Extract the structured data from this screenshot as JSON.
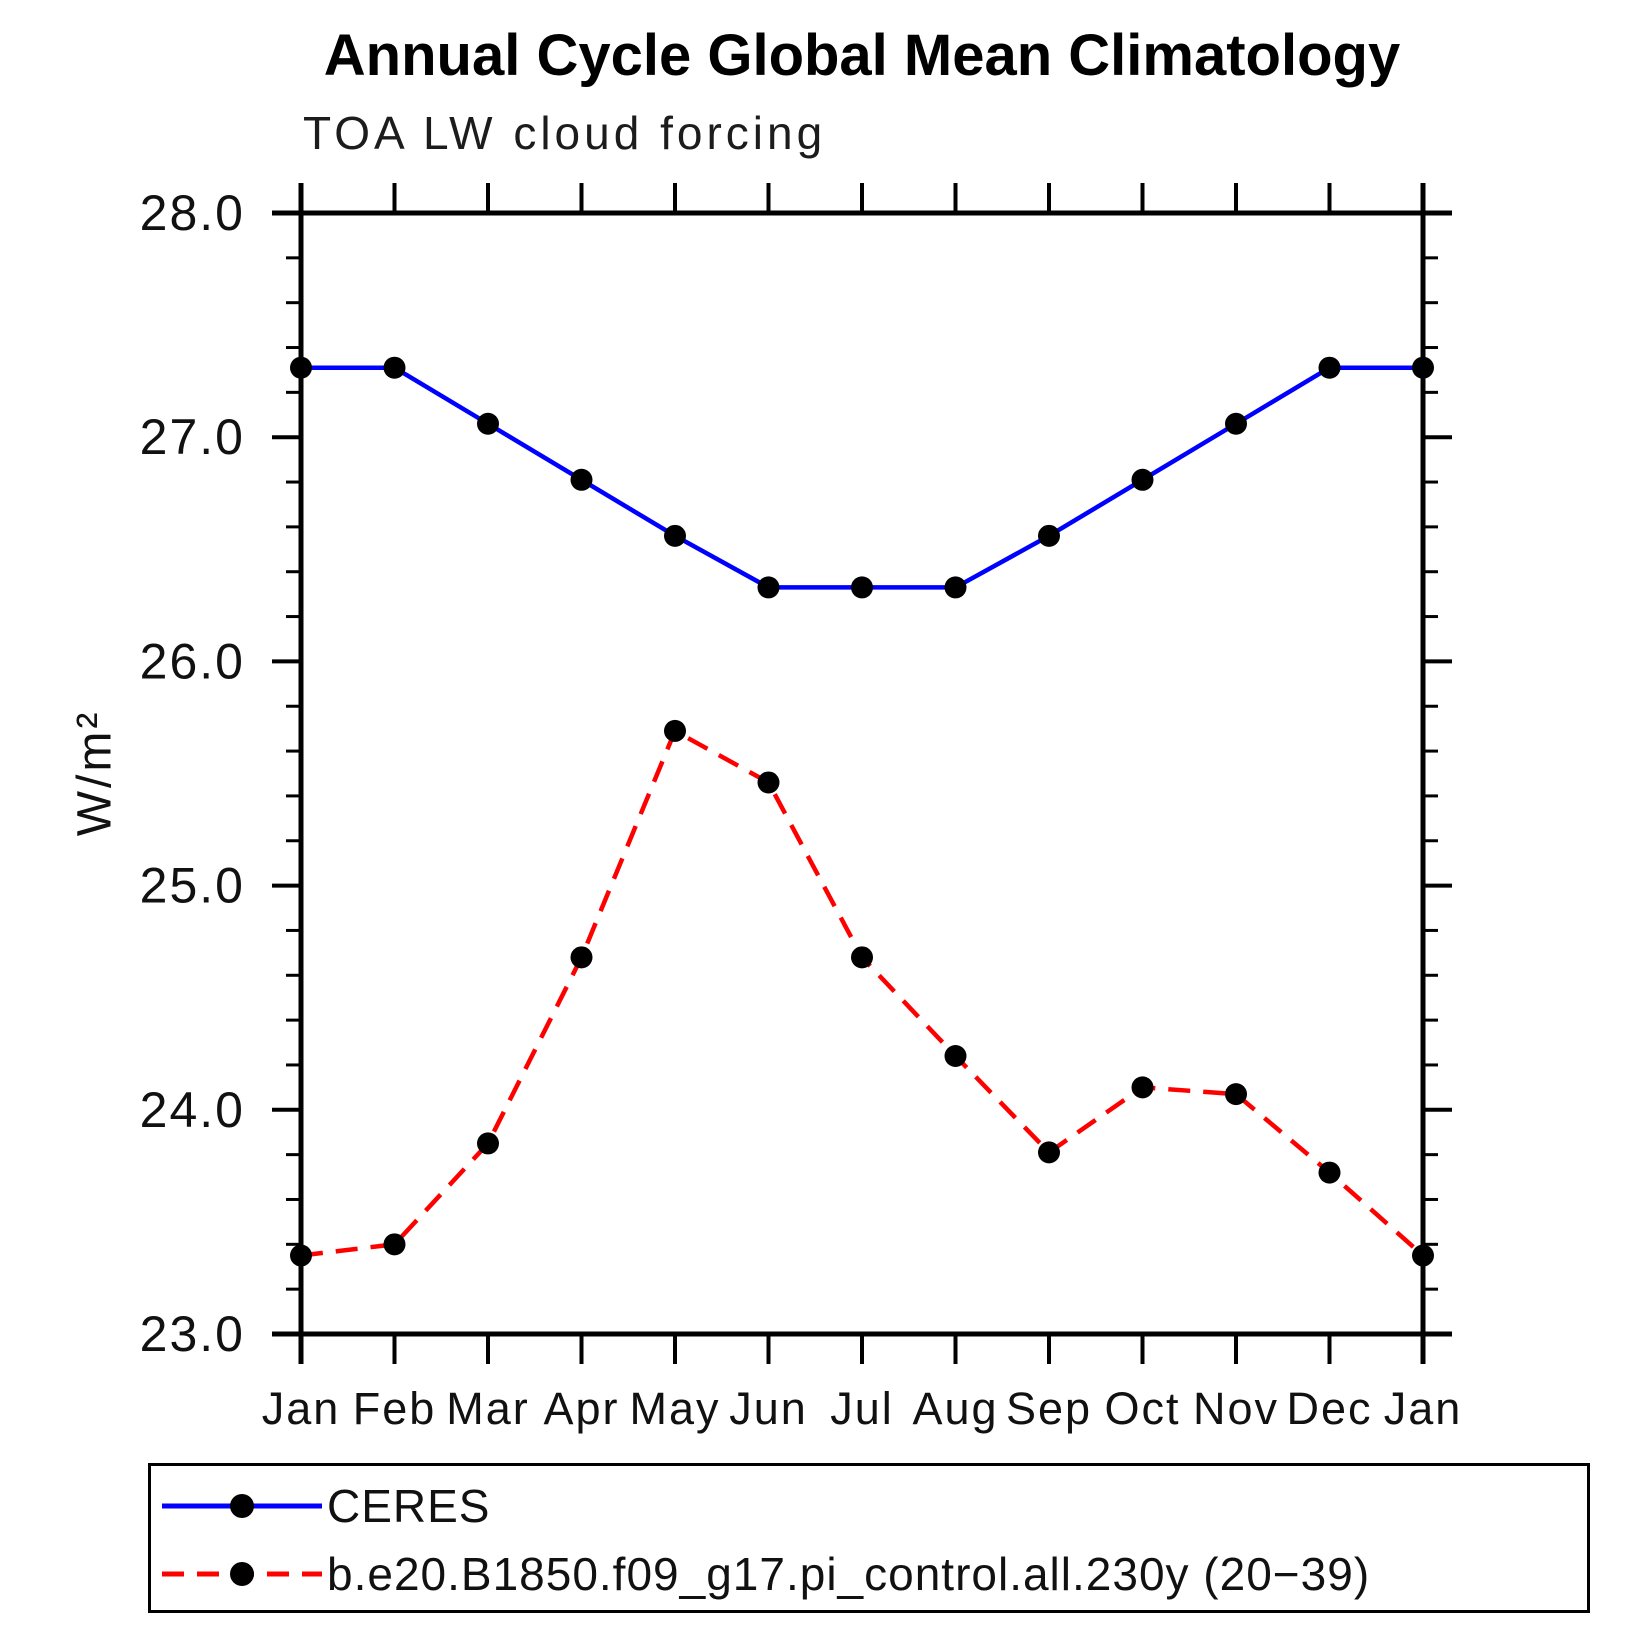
{
  "chart_data": {
    "type": "line",
    "title": "Annual Cycle Global Mean Climatology",
    "subtitle": "TOA LW cloud forcing",
    "ylabel": "W/m²",
    "xlabel": "",
    "x_categories": [
      "Jan",
      "Feb",
      "Mar",
      "Apr",
      "May",
      "Jun",
      "Jul",
      "Aug",
      "Sep",
      "Oct",
      "Nov",
      "Dec",
      "Jan"
    ],
    "ylim": [
      23.0,
      28.0
    ],
    "y_major_tick_step": 1.0,
    "y_minor_tick_step": 0.2,
    "y_tick_labels": [
      "28.0",
      "27.0",
      "26.0",
      "25.0",
      "24.0",
      "23.0"
    ],
    "grid": false,
    "legend_position": "bottom-left-box",
    "series": [
      {
        "name": "CERES",
        "color": "#0000ff",
        "line_style": "solid",
        "marker": "filled-circle",
        "marker_color": "#000000",
        "values": [
          27.31,
          27.31,
          27.06,
          26.81,
          26.56,
          26.33,
          26.33,
          26.33,
          26.56,
          26.81,
          27.06,
          27.31,
          27.31
        ]
      },
      {
        "name": "b.e20.B1850.f09_g17.pi_control.all.230y (20−39)",
        "color": "#ff0000",
        "line_style": "dashed",
        "marker": "filled-circle",
        "marker_color": "#000000",
        "values": [
          23.35,
          23.4,
          23.85,
          24.68,
          25.69,
          25.46,
          24.68,
          24.24,
          23.81,
          24.1,
          24.07,
          23.72,
          23.35
        ]
      }
    ]
  },
  "colors": {
    "axis": "#000000",
    "text": "#111111",
    "background": "#ffffff"
  }
}
